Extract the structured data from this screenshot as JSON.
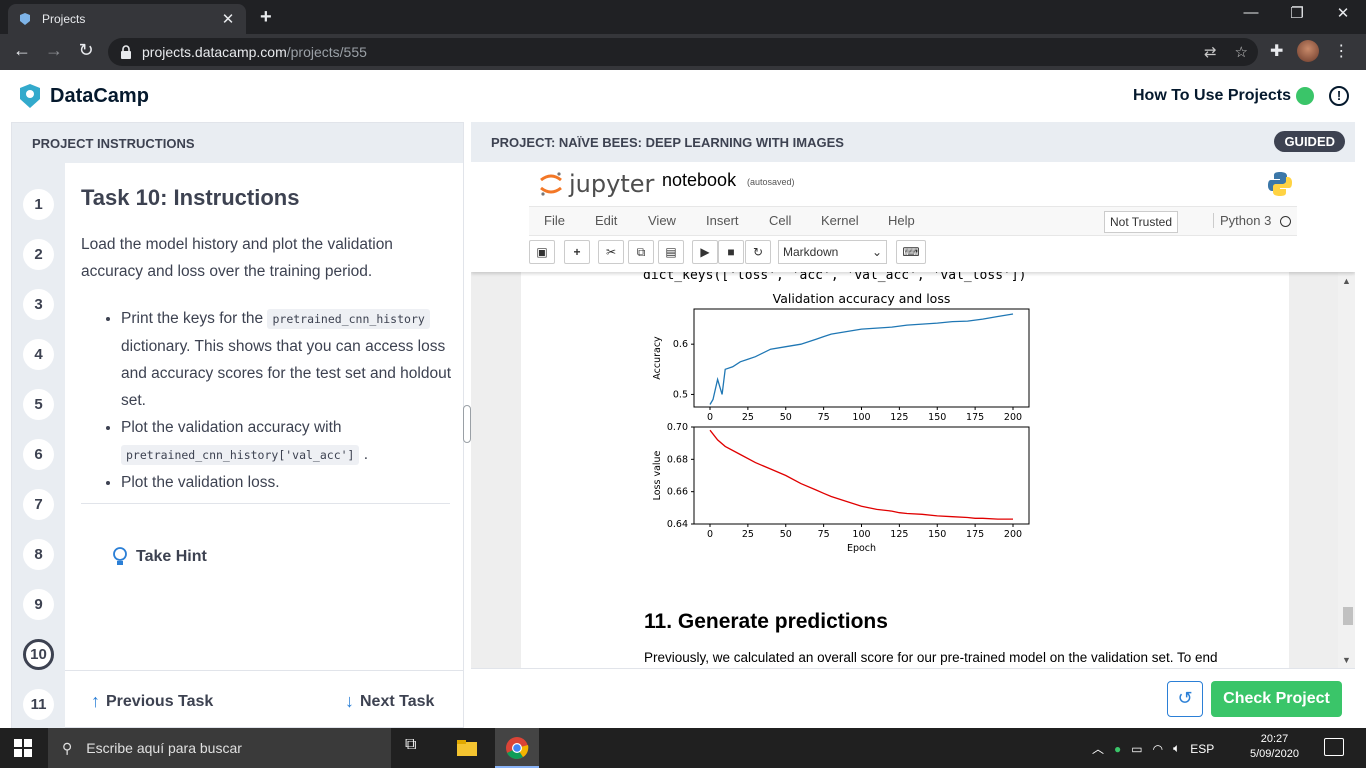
{
  "browser": {
    "tab_title": "Projects",
    "url_host": "projects.datacamp.com",
    "url_path": "/projects/555"
  },
  "header": {
    "brand": "DataCamp",
    "how_to": "How To Use Projects"
  },
  "left": {
    "title": "PROJECT INSTRUCTIONS",
    "steps": [
      "1",
      "2",
      "3",
      "4",
      "5",
      "6",
      "7",
      "8",
      "9",
      "10",
      "11"
    ],
    "active_step": "10",
    "task_title": "Task 10: Instructions",
    "intro": "Load the model history and plot the validation accuracy and loss over the training period.",
    "bullet1_a": "Print the keys for the",
    "bullet1_code": "pretrained_cnn_history",
    "bullet1_b": "dictionary. This shows that you can access loss and accuracy scores for the test set and holdout set.",
    "bullet2_a": "Plot the validation accuracy with",
    "bullet2_code": "pretrained_cnn_history['val_acc']",
    "bullet2_b": ".",
    "bullet3": "Plot the validation loss.",
    "hint": "Take Hint",
    "prev": "Previous Task",
    "next": "Next Task"
  },
  "right": {
    "title": "PROJECT: NAÏVE BEES: DEEP LEARNING WITH IMAGES",
    "badge": "GUIDED",
    "reset_icon": "undo-icon",
    "check": "Check Project"
  },
  "jupyter": {
    "logo": "jupyter",
    "notebook_name": "notebook",
    "autosaved": "(autosaved)",
    "menu": [
      "File",
      "Edit",
      "View",
      "Insert",
      "Cell",
      "Kernel",
      "Help"
    ],
    "trust": "Not Trusted",
    "kernel": "Python 3",
    "cell_type": "Markdown",
    "output_line": "dict_keys(['loss', 'acc', 'val_acc', 'val_loss'])",
    "heading": "11. Generate predictions",
    "paragraph": "Previously, we calculated an overall score for our pre-trained model on the validation set. To end"
  },
  "chart_data": [
    {
      "type": "line",
      "title": "Validation accuracy and loss",
      "ylabel": "Accuracy",
      "xlabel": "",
      "xlim": [
        0,
        200
      ],
      "ylim": [
        0.475,
        0.67
      ],
      "xticks": [
        0,
        25,
        50,
        75,
        100,
        125,
        150,
        175,
        200
      ],
      "yticks": [
        0.5,
        0.6
      ],
      "color": "#1f77b4",
      "x": [
        0,
        2,
        5,
        8,
        10,
        15,
        20,
        25,
        30,
        40,
        50,
        60,
        70,
        75,
        80,
        90,
        100,
        110,
        120,
        125,
        130,
        140,
        150,
        160,
        170,
        175,
        180,
        190,
        200
      ],
      "values": [
        0.48,
        0.49,
        0.53,
        0.5,
        0.55,
        0.555,
        0.565,
        0.57,
        0.575,
        0.59,
        0.595,
        0.6,
        0.61,
        0.615,
        0.62,
        0.625,
        0.63,
        0.632,
        0.634,
        0.636,
        0.638,
        0.64,
        0.642,
        0.645,
        0.646,
        0.648,
        0.65,
        0.655,
        0.66
      ]
    },
    {
      "type": "line",
      "title": "",
      "ylabel": "Loss value",
      "xlabel": "Epoch",
      "xlim": [
        0,
        200
      ],
      "ylim": [
        0.64,
        0.7
      ],
      "xticks": [
        0,
        25,
        50,
        75,
        100,
        125,
        150,
        175,
        200
      ],
      "yticks": [
        0.64,
        0.66,
        0.68,
        0.7
      ],
      "color": "#e00000",
      "x": [
        0,
        5,
        10,
        20,
        30,
        40,
        50,
        60,
        70,
        75,
        80,
        90,
        100,
        110,
        120,
        125,
        130,
        140,
        150,
        160,
        170,
        175,
        180,
        190,
        200
      ],
      "values": [
        0.698,
        0.692,
        0.688,
        0.683,
        0.678,
        0.674,
        0.67,
        0.665,
        0.661,
        0.659,
        0.657,
        0.654,
        0.651,
        0.649,
        0.648,
        0.647,
        0.6465,
        0.646,
        0.645,
        0.6445,
        0.644,
        0.6435,
        0.6435,
        0.643,
        0.643
      ]
    }
  ],
  "taskbar": {
    "search": "Escribe aquí para buscar",
    "lang": "ESP",
    "time": "20:27",
    "date": "5/09/2020"
  }
}
